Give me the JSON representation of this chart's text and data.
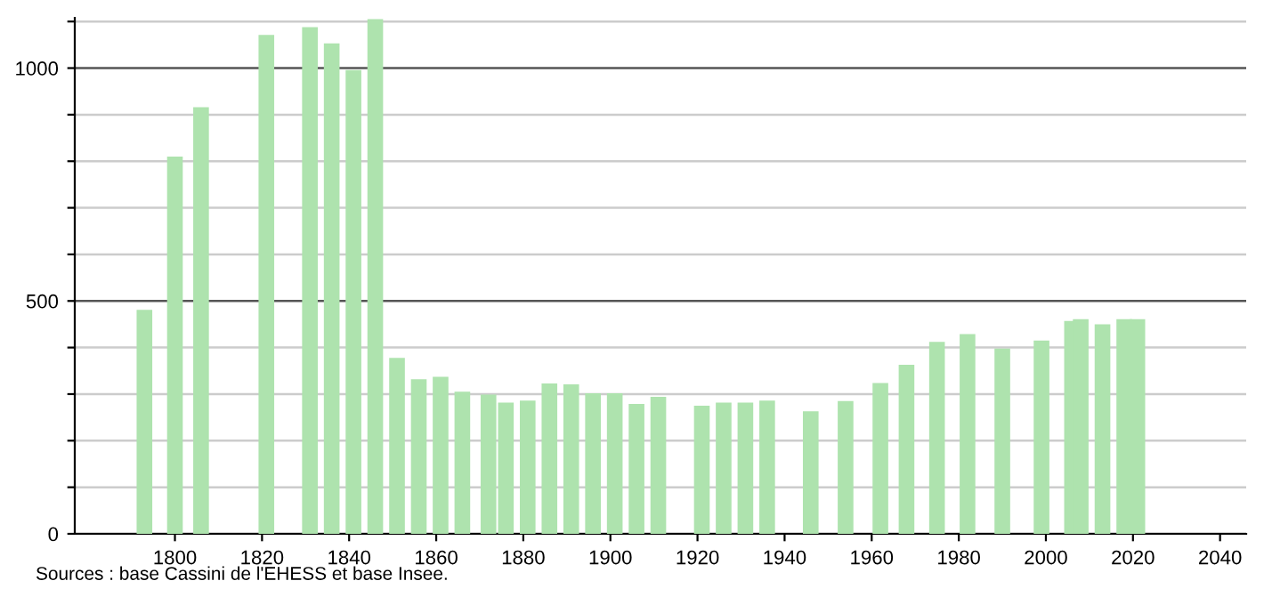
{
  "chart_data": {
    "type": "bar",
    "x": [
      1793,
      1800,
      1806,
      1821,
      1831,
      1836,
      1841,
      1846,
      1851,
      1856,
      1861,
      1866,
      1872,
      1876,
      1881,
      1886,
      1891,
      1896,
      1901,
      1906,
      1911,
      1921,
      1926,
      1931,
      1936,
      1946,
      1954,
      1962,
      1968,
      1975,
      1982,
      1990,
      1999,
      2006,
      2008,
      2013,
      2018,
      2021
    ],
    "values": [
      481,
      810,
      916,
      1071,
      1088,
      1053,
      996,
      1105,
      378,
      332,
      337,
      305,
      299,
      282,
      286,
      323,
      321,
      302,
      302,
      279,
      294,
      275,
      282,
      282,
      286,
      263,
      285,
      324,
      363,
      412,
      429,
      398,
      415,
      457,
      461,
      450,
      461,
      461
    ],
    "color": "#aee3ae",
    "xlim": [
      1777,
      2046
    ],
    "xticks": [
      1800,
      1820,
      1840,
      1860,
      1880,
      1900,
      1920,
      1940,
      1960,
      1980,
      2000,
      2020,
      2040
    ],
    "ylim": [
      0,
      1108
    ],
    "yticks": [
      0,
      {
        "value": 100,
        "label": null
      },
      {
        "value": 200,
        "label": null
      },
      {
        "value": 300,
        "label": null
      },
      {
        "value": 400,
        "label": null
      },
      500,
      {
        "value": 600,
        "label": null
      },
      {
        "value": 700,
        "label": null
      },
      {
        "value": 800,
        "label": null
      },
      {
        "value": 900,
        "label": null
      },
      1000,
      {
        "value": 1100,
        "label": null
      }
    ],
    "grid": "y",
    "annotations": [
      "Sources : base Cassini de l'EHESS et base Insee."
    ]
  }
}
